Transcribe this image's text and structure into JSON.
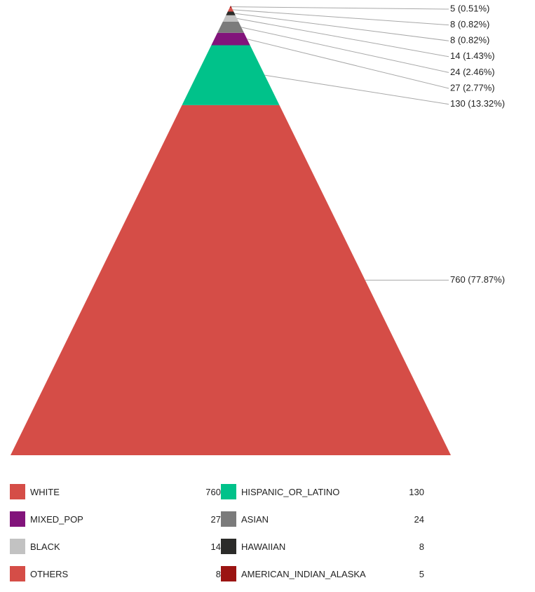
{
  "chart_data": {
    "type": "pyramid",
    "title": "",
    "segments": [
      {
        "name": "WHITE",
        "value": 760,
        "label": "760 (77.87%)",
        "color": "#d54d47"
      },
      {
        "name": "HISPANIC_OR_LATINO",
        "value": 130,
        "label": "130 (13.32%)",
        "color": "#00c28a"
      },
      {
        "name": "MIXED_POP",
        "value": 27,
        "label": "27 (2.77%)",
        "color": "#82147b"
      },
      {
        "name": "ASIAN",
        "value": 24,
        "label": "24 (2.46%)",
        "color": "#7b7b7b"
      },
      {
        "name": "BLACK",
        "value": 14,
        "label": "14 (1.43%)",
        "color": "#c2c2c2"
      },
      {
        "name": "HAWAIIAN",
        "value": 8,
        "label": "8 (0.82%)",
        "color": "#2b2b29"
      },
      {
        "name": "OTHERS",
        "value": 8,
        "label": "8 (0.82%)",
        "color": "#d54d47"
      },
      {
        "name": "AMERICAN_INDIAN_ALASKA",
        "value": 5,
        "label": "5 (0.51%)",
        "color": "#9b1412"
      }
    ]
  },
  "legend": {
    "rows": [
      [
        {
          "name": "WHITE",
          "value": "760",
          "color": "#d54d47"
        },
        {
          "name": "HISPANIC_OR_LATINO",
          "value": "130",
          "color": "#00c28a"
        }
      ],
      [
        {
          "name": "MIXED_POP",
          "value": "27",
          "color": "#82147b"
        },
        {
          "name": "ASIAN",
          "value": "24",
          "color": "#7b7b7b"
        }
      ],
      [
        {
          "name": "BLACK",
          "value": "14",
          "color": "#c2c2c2"
        },
        {
          "name": "HAWAIIAN",
          "value": "8",
          "color": "#2b2b29"
        }
      ],
      [
        {
          "name": "OTHERS",
          "value": "8",
          "color": "#d54d47"
        },
        {
          "name": "AMERICAN_INDIAN_ALASKA",
          "value": "5",
          "color": "#9b1412"
        }
      ]
    ]
  }
}
